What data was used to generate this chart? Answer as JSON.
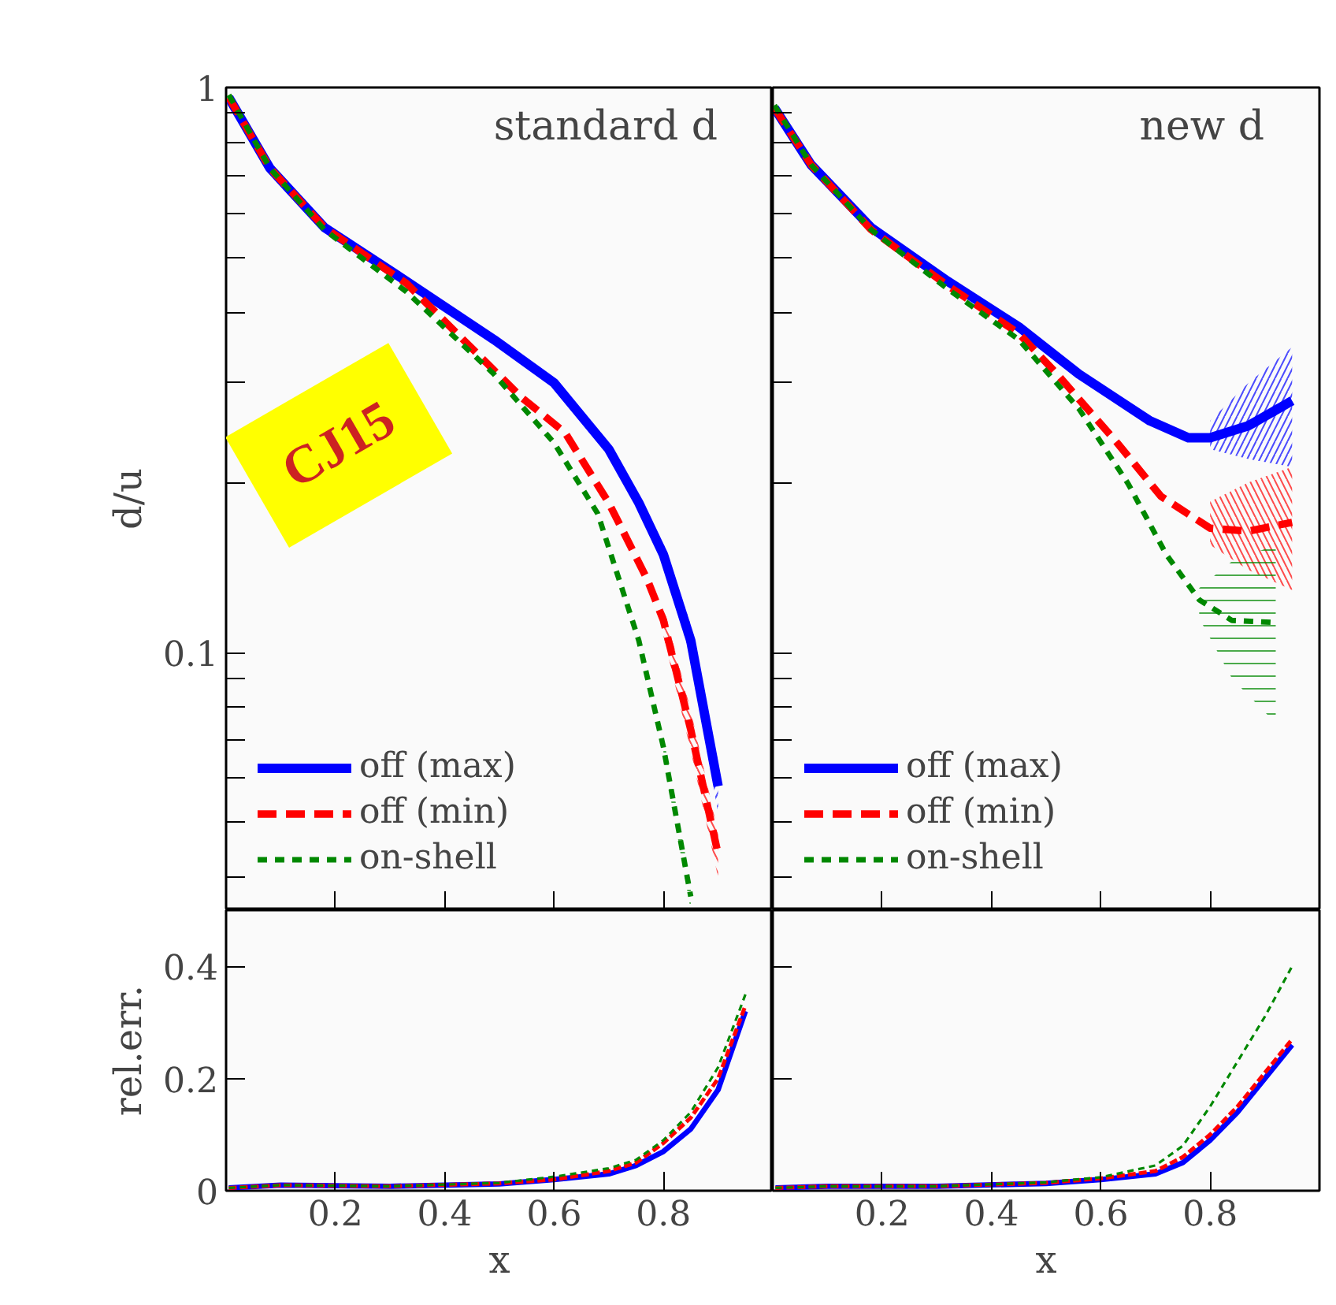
{
  "chart_data": [
    {
      "type": "line",
      "title": "standard d",
      "ylabel": "d/u",
      "log": "y",
      "xlim": [
        0,
        1
      ],
      "ylim": [
        0.035,
        1
      ],
      "xticks": [
        0.2,
        0.4,
        0.6,
        0.8
      ],
      "yticks": [
        {
          "value": 0.04,
          "label": null
        },
        {
          "value": 0.05,
          "label": null
        },
        {
          "value": 0.06,
          "label": null
        },
        {
          "value": 0.07,
          "label": null
        },
        {
          "value": 0.08,
          "label": null
        },
        {
          "value": 0.09,
          "label": null
        },
        0.1,
        {
          "value": 0.2,
          "label": null
        },
        {
          "value": 0.3,
          "label": null
        },
        {
          "value": 0.4,
          "label": null
        },
        {
          "value": 0.5,
          "label": null
        },
        {
          "value": 0.6,
          "label": null
        },
        {
          "value": 0.7,
          "label": null
        },
        {
          "value": 0.8,
          "label": null
        },
        {
          "value": 0.9,
          "label": null
        },
        1
      ],
      "tick_labels": "y",
      "legend": "bottom left",
      "grid": false,
      "annotations": [
        {
          "text": "CJ15"
        }
      ],
      "series": [
        {
          "name": "off (max)",
          "color": "#0000ff",
          "line_style": "solid",
          "x": [
            0.005,
            0.08,
            0.18,
            0.33,
            0.49,
            0.6,
            0.7,
            0.755,
            0.8,
            0.85,
            0.9
          ],
          "values": [
            0.96,
            0.72,
            0.565,
            0.454,
            0.358,
            0.3,
            0.229,
            0.184,
            0.149,
            0.105,
            0.058
          ],
          "lower": [
            null,
            null,
            null,
            null,
            null,
            null,
            null,
            null,
            0.142,
            0.098,
            0.052
          ],
          "upper": [
            null,
            null,
            null,
            null,
            null,
            null,
            null,
            null,
            0.156,
            0.112,
            0.064
          ]
        },
        {
          "name": "off (min)",
          "color": "#ff0000",
          "line_style": "dashed",
          "x": [
            0.005,
            0.08,
            0.18,
            0.33,
            0.54,
            0.62,
            0.7,
            0.77,
            0.8,
            0.85,
            0.9
          ],
          "values": [
            0.96,
            0.72,
            0.565,
            0.45,
            0.283,
            0.245,
            0.184,
            0.135,
            0.114,
            0.073,
            0.044
          ],
          "lower": [
            null,
            null,
            null,
            null,
            null,
            null,
            null,
            null,
            0.107,
            0.067,
            0.04
          ],
          "upper": [
            null,
            null,
            null,
            null,
            null,
            null,
            null,
            null,
            0.121,
            0.079,
            0.048
          ]
        },
        {
          "name": "on-shell",
          "color": "#008800",
          "line_style": "dotted",
          "x": [
            0.005,
            0.08,
            0.18,
            0.33,
            0.49,
            0.6,
            0.68,
            0.755,
            0.8,
            0.85
          ],
          "values": [
            0.97,
            0.72,
            0.56,
            0.435,
            0.311,
            0.235,
            0.176,
            0.105,
            0.068,
            0.037
          ],
          "lower": [
            null,
            null,
            null,
            null,
            null,
            null,
            null,
            null,
            0.065,
            0.035
          ],
          "upper": [
            null,
            null,
            null,
            null,
            null,
            null,
            null,
            null,
            0.071,
            0.039
          ]
        }
      ]
    },
    {
      "type": "line",
      "title": "new d",
      "log": "y",
      "xlim": [
        0,
        1
      ],
      "ylim": [
        0.035,
        1
      ],
      "xticks": [
        0.2,
        0.4,
        0.6,
        0.8
      ],
      "yticks": [
        {
          "value": 0.04,
          "label": null
        },
        {
          "value": 0.05,
          "label": null
        },
        {
          "value": 0.06,
          "label": null
        },
        {
          "value": 0.07,
          "label": null
        },
        {
          "value": 0.08,
          "label": null
        },
        {
          "value": 0.09,
          "label": null
        },
        {
          "value": 0.1,
          "label": null
        },
        {
          "value": 0.2,
          "label": null
        },
        {
          "value": 0.3,
          "label": null
        },
        {
          "value": 0.4,
          "label": null
        },
        {
          "value": 0.5,
          "label": null
        },
        {
          "value": 0.6,
          "label": null
        },
        {
          "value": 0.7,
          "label": null
        },
        {
          "value": 0.8,
          "label": null
        },
        {
          "value": 0.9,
          "label": null
        },
        {
          "value": 1,
          "label": null
        }
      ],
      "tick_labels": false,
      "legend": "bottom left",
      "grid": false,
      "series": [
        {
          "name": "off (max)",
          "color": "#0000ff",
          "line_style": "solid",
          "x": [
            0.003,
            0.07,
            0.18,
            0.32,
            0.45,
            0.56,
            0.69,
            0.76,
            0.8,
            0.87,
            0.95
          ],
          "values": [
            0.92,
            0.73,
            0.565,
            0.454,
            0.377,
            0.311,
            0.257,
            0.24,
            0.24,
            0.252,
            0.279
          ],
          "lower": [
            null,
            null,
            null,
            null,
            null,
            null,
            null,
            null,
            0.229,
            0.22,
            0.213
          ],
          "upper": [
            null,
            null,
            null,
            null,
            null,
            null,
            null,
            null,
            0.257,
            0.3,
            0.347
          ]
        },
        {
          "name": "off (min)",
          "color": "#ff0000",
          "line_style": "dashed",
          "x": [
            0.003,
            0.07,
            0.18,
            0.32,
            0.45,
            0.52,
            0.63,
            0.71,
            0.8,
            0.87,
            0.95
          ],
          "values": [
            0.92,
            0.73,
            0.56,
            0.446,
            0.367,
            0.311,
            0.235,
            0.189,
            0.166,
            0.164,
            0.17
          ],
          "lower": [
            null,
            null,
            null,
            null,
            null,
            null,
            null,
            null,
            0.155,
            0.14,
            0.129
          ],
          "upper": [
            null,
            null,
            null,
            null,
            null,
            null,
            null,
            null,
            0.185,
            0.2,
            0.213
          ]
        },
        {
          "name": "on-shell",
          "color": "#008800",
          "line_style": "dotted",
          "x": [
            0.003,
            0.07,
            0.18,
            0.32,
            0.45,
            0.56,
            0.65,
            0.72,
            0.78,
            0.84,
            0.92
          ],
          "values": [
            0.93,
            0.73,
            0.56,
            0.44,
            0.358,
            0.27,
            0.199,
            0.149,
            0.124,
            0.114,
            0.113
          ],
          "lower": [
            null,
            null,
            null,
            null,
            null,
            null,
            null,
            null,
            0.115,
            0.09,
            0.075
          ],
          "upper": [
            null,
            null,
            null,
            null,
            null,
            null,
            null,
            null,
            0.13,
            0.145,
            0.155
          ]
        }
      ]
    },
    {
      "type": "line",
      "xlabel": "x",
      "ylabel": "rel.err.",
      "xlim": [
        0,
        1
      ],
      "ylim": [
        0,
        0.5
      ],
      "xticks": [
        0.2,
        0.4,
        0.6,
        0.8
      ],
      "yticks": [
        0,
        0.2,
        0.4
      ],
      "grid": false,
      "series": [
        {
          "color": "#0000ff",
          "line_style": "solid",
          "x": [
            0.005,
            0.1,
            0.3,
            0.5,
            0.6,
            0.7,
            0.75,
            0.8,
            0.85,
            0.9,
            0.95
          ],
          "values": [
            0.005,
            0.01,
            0.008,
            0.012,
            0.02,
            0.03,
            0.045,
            0.07,
            0.11,
            0.18,
            0.32
          ]
        },
        {
          "color": "#ff0000",
          "line_style": "dashed",
          "x": [
            0.005,
            0.1,
            0.3,
            0.5,
            0.6,
            0.7,
            0.75,
            0.8,
            0.85,
            0.9,
            0.95
          ],
          "values": [
            0.005,
            0.01,
            0.008,
            0.013,
            0.02,
            0.035,
            0.05,
            0.085,
            0.13,
            0.2,
            0.33
          ]
        },
        {
          "color": "#008800",
          "line_style": "dotted",
          "x": [
            0.005,
            0.1,
            0.3,
            0.5,
            0.6,
            0.7,
            0.75,
            0.8,
            0.85,
            0.9,
            0.95
          ],
          "values": [
            0.005,
            0.01,
            0.008,
            0.014,
            0.025,
            0.04,
            0.055,
            0.09,
            0.14,
            0.22,
            0.35
          ]
        }
      ]
    },
    {
      "type": "line",
      "xlabel": "x",
      "xlim": [
        0,
        1
      ],
      "ylim": [
        0,
        0.5
      ],
      "xticks": [
        0.2,
        0.4,
        0.6,
        0.8
      ],
      "yticks": [
        {
          "value": 0,
          "label": null
        },
        {
          "value": 0.2,
          "label": null
        },
        {
          "value": 0.4,
          "label": null
        }
      ],
      "tick_labels": "x",
      "grid": false,
      "series": [
        {
          "color": "#0000ff",
          "line_style": "solid",
          "x": [
            0.005,
            0.1,
            0.3,
            0.5,
            0.6,
            0.7,
            0.75,
            0.8,
            0.85,
            0.9,
            0.95
          ],
          "values": [
            0.005,
            0.008,
            0.008,
            0.013,
            0.02,
            0.03,
            0.05,
            0.09,
            0.14,
            0.2,
            0.26
          ]
        },
        {
          "color": "#ff0000",
          "line_style": "dashed",
          "x": [
            0.005,
            0.1,
            0.3,
            0.5,
            0.6,
            0.7,
            0.75,
            0.8,
            0.85,
            0.9,
            0.95
          ],
          "values": [
            0.005,
            0.008,
            0.008,
            0.014,
            0.022,
            0.035,
            0.06,
            0.1,
            0.15,
            0.21,
            0.27
          ]
        },
        {
          "color": "#008800",
          "line_style": "dotted",
          "x": [
            0.005,
            0.1,
            0.3,
            0.5,
            0.6,
            0.7,
            0.75,
            0.8,
            0.85,
            0.9,
            0.95
          ],
          "values": [
            0.005,
            0.008,
            0.008,
            0.015,
            0.024,
            0.045,
            0.08,
            0.15,
            0.23,
            0.31,
            0.4
          ]
        }
      ]
    }
  ]
}
